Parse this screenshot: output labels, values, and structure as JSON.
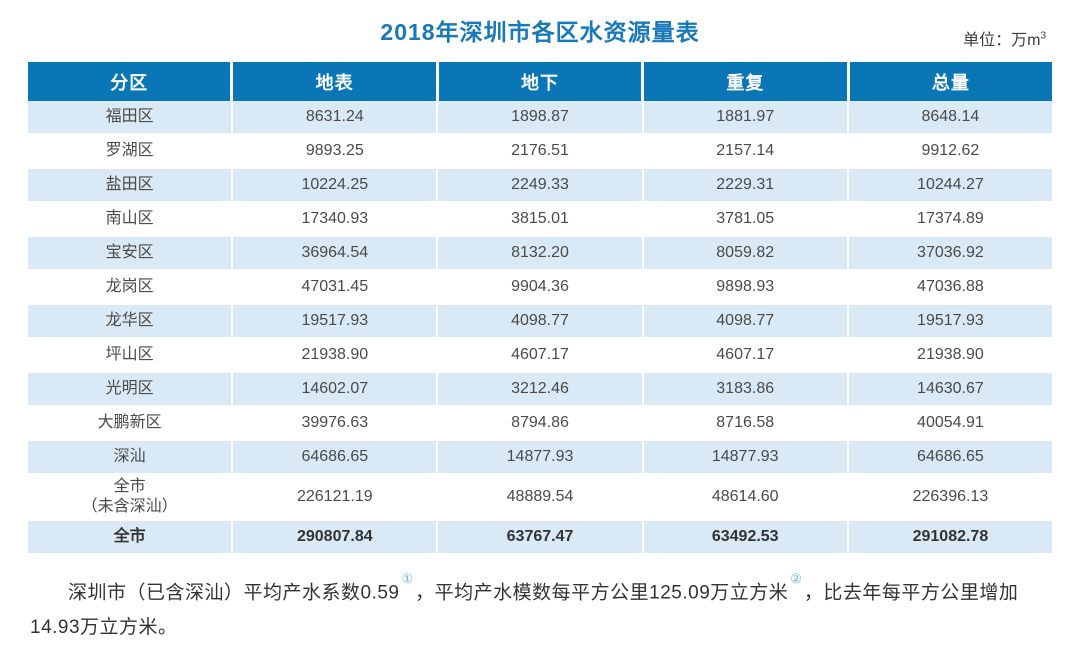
{
  "page": {
    "title": "2018年深圳市各区水资源量表",
    "unit_prefix": "单位：万m",
    "unit_sup": "3"
  },
  "table": {
    "columns": [
      "分区",
      "地表",
      "地下",
      "重复",
      "总量"
    ],
    "rows": [
      {
        "name": "福田区",
        "values": [
          "8631.24",
          "1898.87",
          "1881.97",
          "8648.14"
        ]
      },
      {
        "name": "罗湖区",
        "values": [
          "9893.25",
          "2176.51",
          "2157.14",
          "9912.62"
        ]
      },
      {
        "name": "盐田区",
        "values": [
          "10224.25",
          "2249.33",
          "2229.31",
          "10244.27"
        ]
      },
      {
        "name": "南山区",
        "values": [
          "17340.93",
          "3815.01",
          "3781.05",
          "17374.89"
        ]
      },
      {
        "name": "宝安区",
        "values": [
          "36964.54",
          "8132.20",
          "8059.82",
          "37036.92"
        ]
      },
      {
        "name": "龙岗区",
        "values": [
          "47031.45",
          "9904.36",
          "9898.93",
          "47036.88"
        ]
      },
      {
        "name": "龙华区",
        "values": [
          "19517.93",
          "4098.77",
          "4098.77",
          "19517.93"
        ]
      },
      {
        "name": "坪山区",
        "values": [
          "21938.90",
          "4607.17",
          "4607.17",
          "21938.90"
        ]
      },
      {
        "name": "光明区",
        "values": [
          "14602.07",
          "3212.46",
          "3183.86",
          "14630.67"
        ]
      },
      {
        "name": "大鹏新区",
        "values": [
          "39976.63",
          "8794.86",
          "8716.58",
          "40054.91"
        ]
      },
      {
        "name": "深汕",
        "values": [
          "64686.65",
          "14877.93",
          "14877.93",
          "64686.65"
        ]
      },
      {
        "name": "全市\n（未含深汕）",
        "values": [
          "226121.19",
          "48889.54",
          "48614.60",
          "226396.13"
        ]
      },
      {
        "name": "全市",
        "values": [
          "290807.84",
          "63767.47",
          "63492.53",
          "291082.78"
        ]
      }
    ]
  },
  "footnote": {
    "seg1": "深圳市（已含深汕）平均产水系数0.59",
    "sup1": "①",
    "seg2": "，平均产水模数每平方公里125.09万立方米",
    "sup2": "②",
    "seg3": "，比去年每平方公里增加14.93万立方米。"
  },
  "colors": {
    "header_bg": "#0b76b6",
    "row_alt_bg": "#d9e9f5",
    "title": "#1879b9",
    "footnote_marker": "#5fb5e5",
    "body_text": "#4a4a4a"
  },
  "chart_data": {
    "type": "table",
    "title": "2018年深圳市各区水资源量表",
    "unit": "万m³",
    "columns": [
      "分区",
      "地表",
      "地下",
      "重复",
      "总量"
    ],
    "rows": [
      {
        "分区": "福田区",
        "地表": 8631.24,
        "地下": 1898.87,
        "重复": 1881.97,
        "总量": 8648.14
      },
      {
        "分区": "罗湖区",
        "地表": 9893.25,
        "地下": 2176.51,
        "重复": 2157.14,
        "总量": 9912.62
      },
      {
        "分区": "盐田区",
        "地表": 10224.25,
        "地下": 2249.33,
        "重复": 2229.31,
        "总量": 10244.27
      },
      {
        "分区": "南山区",
        "地表": 17340.93,
        "地下": 3815.01,
        "重复": 3781.05,
        "总量": 17374.89
      },
      {
        "分区": "宝安区",
        "地表": 36964.54,
        "地下": 8132.2,
        "重复": 8059.82,
        "总量": 37036.92
      },
      {
        "分区": "龙岗区",
        "地表": 47031.45,
        "地下": 9904.36,
        "重复": 9898.93,
        "总量": 47036.88
      },
      {
        "分区": "龙华区",
        "地表": 19517.93,
        "地下": 4098.77,
        "重复": 4098.77,
        "总量": 19517.93
      },
      {
        "分区": "坪山区",
        "地表": 21938.9,
        "地下": 4607.17,
        "重复": 4607.17,
        "总量": 21938.9
      },
      {
        "分区": "光明区",
        "地表": 14602.07,
        "地下": 3212.46,
        "重复": 3183.86,
        "总量": 14630.67
      },
      {
        "分区": "大鹏新区",
        "地表": 39976.63,
        "地下": 8794.86,
        "重复": 8716.58,
        "总量": 40054.91
      },
      {
        "分区": "深汕",
        "地表": 64686.65,
        "地下": 14877.93,
        "重复": 14877.93,
        "总量": 64686.65
      },
      {
        "分区": "全市（未含深汕）",
        "地表": 226121.19,
        "地下": 48889.54,
        "重复": 48614.6,
        "总量": 226396.13
      },
      {
        "分区": "全市",
        "地表": 290807.84,
        "地下": 63767.47,
        "重复": 63492.53,
        "总量": 291082.78
      }
    ],
    "annotations": {
      "平均产水系数": 0.59,
      "平均产水模数_万立方米每平方公里": 125.09,
      "比去年每平方公里增加_万立方米": 14.93
    }
  }
}
